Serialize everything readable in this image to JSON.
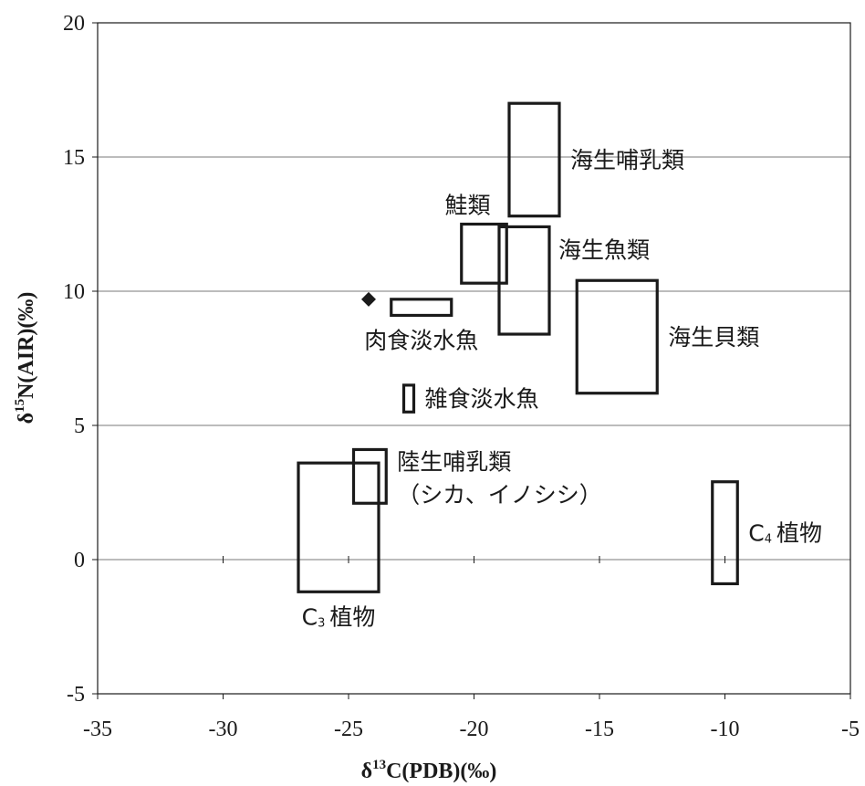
{
  "chart_data": {
    "type": "scatter",
    "xlabel": "δ13C(PDB)(‰)",
    "ylabel": "δ15N(AIR)(‰)",
    "xlim": [
      -35,
      -5
    ],
    "ylim": [
      -5,
      20
    ],
    "xticks": [
      -35,
      -30,
      -25,
      -20,
      -15,
      -10,
      -5
    ],
    "yticks": [
      -5,
      0,
      5,
      10,
      15,
      20
    ],
    "grid": "horizontal",
    "regions": [
      {
        "label": "海生哺乳類",
        "x": [
          -18.6,
          -16.6
        ],
        "y": [
          12.8,
          17.0
        ],
        "label_anchor": "right"
      },
      {
        "label": "鮭類",
        "x": [
          -20.5,
          -18.7
        ],
        "y": [
          10.3,
          12.5
        ],
        "label_anchor": "top"
      },
      {
        "label": "海生魚類",
        "x": [
          -19.0,
          -17.0
        ],
        "y": [
          8.4,
          12.4
        ],
        "label_anchor": "right-top"
      },
      {
        "label": "海生貝類",
        "x": [
          -15.9,
          -12.7
        ],
        "y": [
          6.2,
          10.4
        ],
        "label_anchor": "right"
      },
      {
        "label": "肉食淡水魚",
        "x": [
          -23.3,
          -20.9
        ],
        "y": [
          9.1,
          9.7
        ],
        "label_anchor": "bottom"
      },
      {
        "label": "雑食淡水魚",
        "x": [
          -22.8,
          -22.4
        ],
        "y": [
          5.5,
          6.5
        ],
        "label_anchor": "right"
      },
      {
        "label_lines": [
          "陸生哺乳類",
          "（シカ、イノシシ）"
        ],
        "x": [
          -24.8,
          -23.5
        ],
        "y": [
          2.1,
          4.1
        ],
        "label_anchor": "right"
      },
      {
        "label_main": "C",
        "label_sub": "3",
        "label_rest": "植物",
        "x": [
          -27.0,
          -23.8
        ],
        "y": [
          -1.2,
          3.6
        ],
        "label_anchor": "bottom"
      },
      {
        "label_main": "C",
        "label_sub": "4",
        "label_rest": "植物",
        "x": [
          -10.5,
          -9.5
        ],
        "y": [
          -0.9,
          2.9
        ],
        "label_anchor": "right"
      }
    ],
    "points": [
      {
        "x": -24.2,
        "y": 9.7,
        "marker": "diamond"
      }
    ]
  }
}
